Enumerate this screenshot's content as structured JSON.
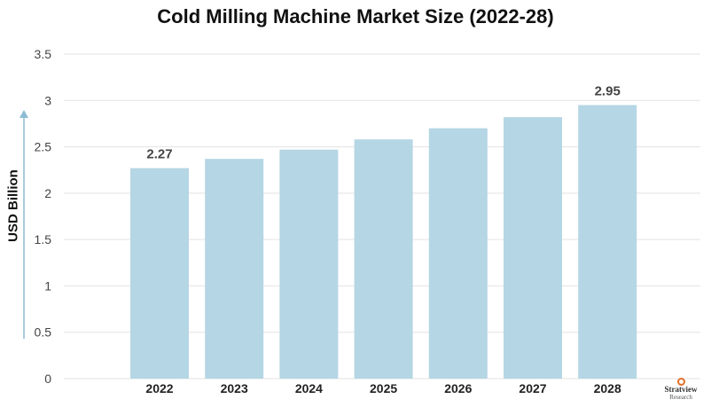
{
  "chart_data": {
    "type": "bar",
    "title": "Cold Milling Machine Market Size (2022-28)",
    "xlabel": "",
    "ylabel": "USD Billion",
    "categories": [
      "2022",
      "2023",
      "2024",
      "2025",
      "2026",
      "2027",
      "2028"
    ],
    "values": [
      2.27,
      2.37,
      2.47,
      2.58,
      2.7,
      2.82,
      2.95
    ],
    "data_labels": [
      {
        "category": "2022",
        "text": "2.27"
      },
      {
        "category": "2028",
        "text": "2.95"
      }
    ],
    "ylim": [
      0,
      3.5
    ],
    "yticks": [
      "0",
      "0.5",
      "1",
      "1.5",
      "2",
      "2.5",
      "3",
      "3.5"
    ],
    "grid": true,
    "legend": "none",
    "colors": {
      "bar": "#b5d6e4",
      "grid": "#e3e3e3",
      "axis_arrow": "#8bbcd3"
    }
  },
  "logo": {
    "brand": "Stratview",
    "sub": "Research"
  }
}
